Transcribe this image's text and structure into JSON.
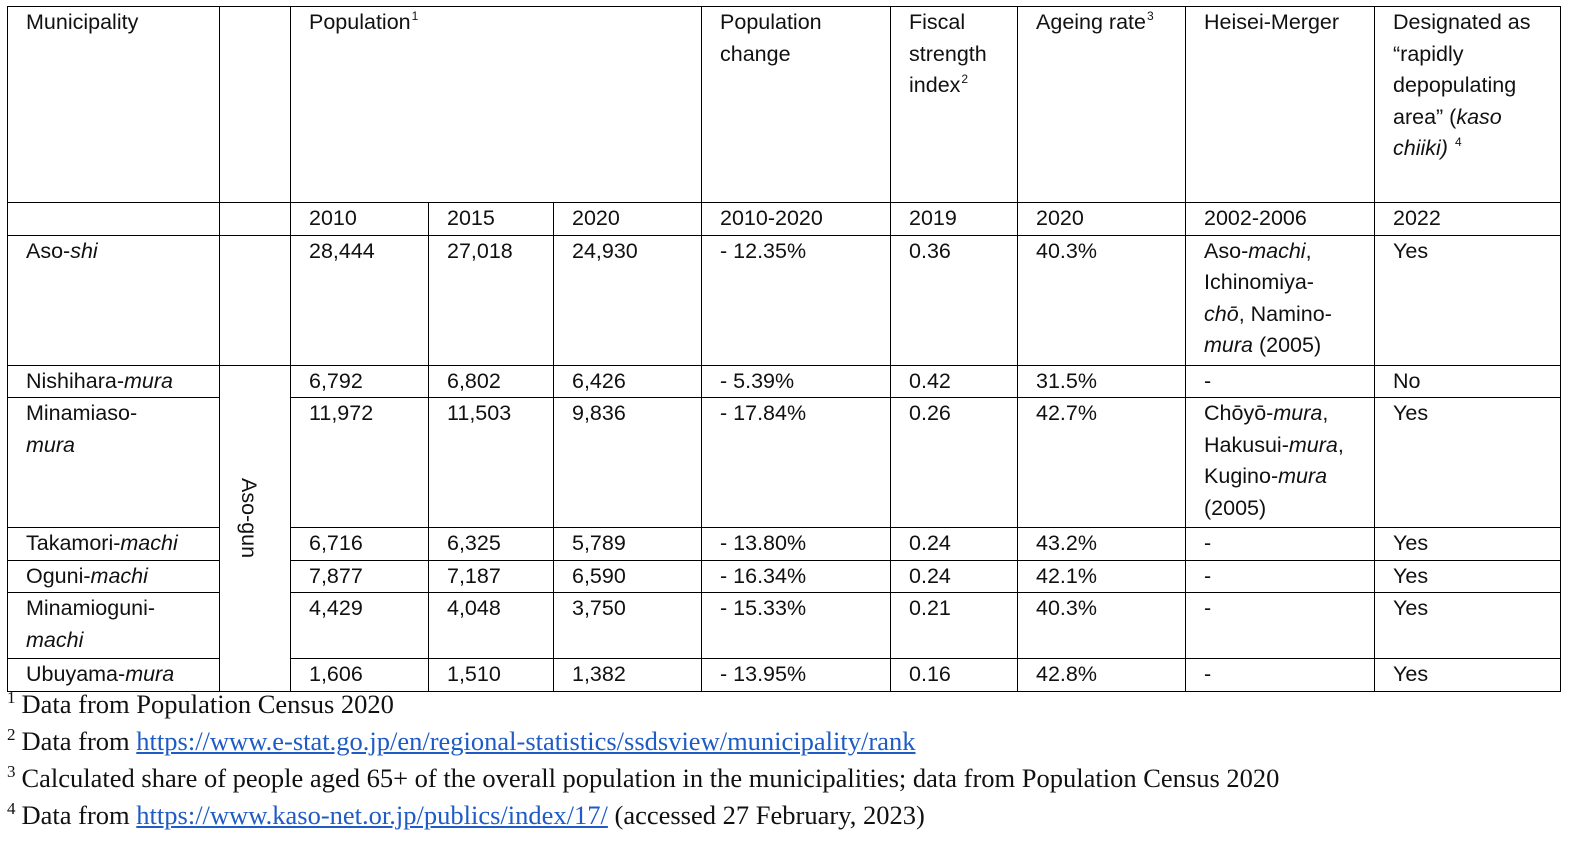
{
  "table": {
    "headers": {
      "municipality": "Municipality",
      "population": "Population",
      "population_sup": "1",
      "population_change_line1": "Population",
      "population_change_line2": "change",
      "fiscal_line1": "Fiscal",
      "fiscal_line2": "strength",
      "fiscal_line3": "index",
      "fiscal_sup": "2",
      "ageing": "Ageing rate",
      "ageing_sup": "3",
      "merger": "Heisei-Merger",
      "designated_line1": "Designated as",
      "designated_line2": "“rapidly",
      "designated_line3": "depopulating",
      "designated_line4_pre": "area” (",
      "designated_line4_italic": "kaso",
      "designated_line5_italic": "chiiki)",
      "designated_sup": "4"
    },
    "subheaders": {
      "y2010": "2010",
      "y2015": "2015",
      "y2020": "2020",
      "change_period": "2010-2020",
      "fiscal_year": "2019",
      "ageing_year": "2020",
      "merger_period": "2002-2006",
      "designated_year": "2022"
    },
    "district_label": "Aso-gun",
    "rows": [
      {
        "name_lines": [
          [
            "Aso-",
            "shi"
          ]
        ],
        "p2010": "28,444",
        "p2015": "27,018",
        "p2020": "24,930",
        "change": "- 12.35%",
        "fiscal": "0.36",
        "ageing": "40.3%",
        "merger_lines": [
          [
            "Aso-",
            "machi",
            ","
          ],
          [
            "Ichinomiya-",
            "",
            ""
          ],
          [
            "",
            "chō",
            ", Namino-"
          ],
          [
            "",
            "mura",
            " (2005)"
          ]
        ],
        "designated": "Yes"
      },
      {
        "name_lines": [
          [
            "Nishihara-",
            "mura"
          ]
        ],
        "p2010": "6,792",
        "p2015": "6,802",
        "p2020": "6,426",
        "change": "- 5.39%",
        "fiscal": "0.42",
        "ageing": "31.5%",
        "merger_lines": [
          [
            "-",
            "",
            ""
          ]
        ],
        "designated": "No"
      },
      {
        "name_lines": [
          [
            "Minamiaso-",
            ""
          ],
          [
            "",
            "mura"
          ]
        ],
        "p2010": "11,972",
        "p2015": "11,503",
        "p2020": "9,836",
        "change": "- 17.84%",
        "fiscal": "0.26",
        "ageing": "42.7%",
        "merger_lines": [
          [
            "Chōyō-",
            "mura",
            ","
          ],
          [
            "Hakusui-",
            "mura",
            ","
          ],
          [
            "Kugino-",
            "mura",
            ""
          ],
          [
            "(2005)",
            "",
            ""
          ]
        ],
        "designated": "Yes"
      },
      {
        "name_lines": [
          [
            "Takamori-",
            "machi"
          ]
        ],
        "p2010": "6,716",
        "p2015": "6,325",
        "p2020": "5,789",
        "change": "- 13.80%",
        "fiscal": "0.24",
        "ageing": "43.2%",
        "merger_lines": [
          [
            "-",
            "",
            ""
          ]
        ],
        "designated": "Yes"
      },
      {
        "name_lines": [
          [
            "Oguni-",
            "machi"
          ]
        ],
        "p2010": "7,877",
        "p2015": "7,187",
        "p2020": "6,590",
        "change": "- 16.34%",
        "fiscal": "0.24",
        "ageing": "42.1%",
        "merger_lines": [
          [
            "-",
            "",
            ""
          ]
        ],
        "designated": "Yes"
      },
      {
        "name_lines": [
          [
            "Minamioguni-",
            ""
          ],
          [
            "",
            "machi"
          ]
        ],
        "p2010": "4,429",
        "p2015": "4,048",
        "p2020": "3,750",
        "change": "- 15.33%",
        "fiscal": "0.21",
        "ageing": "40.3%",
        "merger_lines": [
          [
            "-",
            "",
            ""
          ]
        ],
        "designated": "Yes"
      },
      {
        "name_lines": [
          [
            "Ubuyama-",
            "mura"
          ]
        ],
        "p2010": "1,606",
        "p2015": "1,510",
        "p2020": "1,382",
        "change": "- 13.95%",
        "fiscal": "0.16",
        "ageing": "42.8%",
        "merger_lines": [
          [
            "-",
            "",
            ""
          ]
        ],
        "designated": "Yes"
      }
    ]
  },
  "footnotes": [
    {
      "num": "1",
      "text": "Data from Population Census 2020",
      "link": "",
      "after": ""
    },
    {
      "num": "2",
      "text": "Data from ",
      "link": "https://www.e-stat.go.jp/en/regional-statistics/ssdsview/municipality/rank",
      "after": ""
    },
    {
      "num": "3",
      "text": "Calculated share of people aged 65+ of the overall population in the municipalities; data from Population Census 2020",
      "link": "",
      "after": ""
    },
    {
      "num": "4",
      "text": "Data from ",
      "link": "https://www.kaso-net.or.jp/publics/index/17/",
      "after": " (accessed 27 February, 2023)"
    }
  ],
  "colors": {
    "link": "#1e5bc6",
    "border": "#000000",
    "text": "#111111"
  }
}
